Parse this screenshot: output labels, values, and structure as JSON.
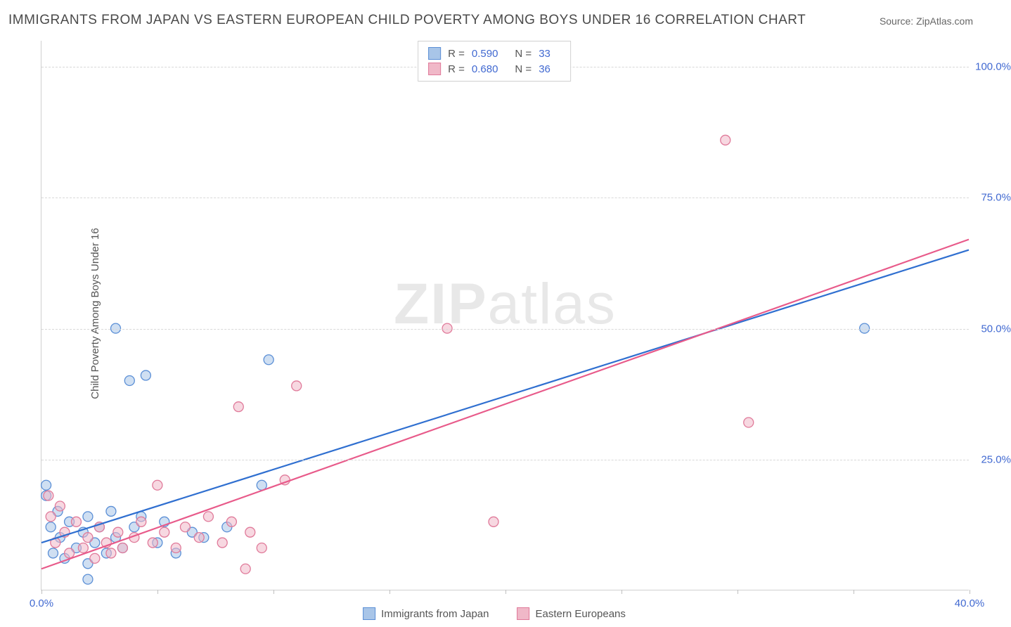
{
  "title": "IMMIGRANTS FROM JAPAN VS EASTERN EUROPEAN CHILD POVERTY AMONG BOYS UNDER 16 CORRELATION CHART",
  "source": "Source: ZipAtlas.com",
  "watermark_bold": "ZIP",
  "watermark_light": "atlas",
  "ylabel": "Child Poverty Among Boys Under 16",
  "chart": {
    "type": "scatter",
    "background_color": "#ffffff",
    "grid_color": "#d8d8d8",
    "axis_color": "#d0d0d0",
    "tick_color": "#4169d1",
    "tick_fontsize": 15,
    "ylabel_fontsize": 15,
    "xlim": [
      0,
      40
    ],
    "ylim": [
      0,
      105
    ],
    "xticks": [
      0,
      5,
      10,
      15,
      20,
      25,
      30,
      35,
      40
    ],
    "yticks": [
      25,
      50,
      75,
      100
    ],
    "xtick_labels": {
      "0": "0.0%",
      "40": "40.0%"
    },
    "ytick_labels": {
      "25": "25.0%",
      "50": "50.0%",
      "75": "75.0%",
      "100": "100.0%"
    },
    "series": [
      {
        "name": "Immigrants from Japan",
        "color_fill": "#a8c5e8",
        "color_stroke": "#5b8fd6",
        "fill_opacity": 0.55,
        "stroke_width": 1.3,
        "marker_radius": 7,
        "r_value": "0.590",
        "n_value": "33",
        "trend_line": {
          "x1": 0,
          "y1": 9,
          "x2": 40,
          "y2": 65,
          "color": "#2f6fd0",
          "width": 2.2
        },
        "points": [
          [
            0.2,
            20
          ],
          [
            0.2,
            18
          ],
          [
            0.4,
            12
          ],
          [
            0.5,
            7
          ],
          [
            0.7,
            15
          ],
          [
            0.8,
            10
          ],
          [
            1.0,
            6
          ],
          [
            1.2,
            13
          ],
          [
            1.5,
            8
          ],
          [
            1.8,
            11
          ],
          [
            2.0,
            5
          ],
          [
            2.0,
            14
          ],
          [
            2.3,
            9
          ],
          [
            2.5,
            12
          ],
          [
            2.8,
            7
          ],
          [
            3.0,
            15
          ],
          [
            3.2,
            10
          ],
          [
            3.5,
            8
          ],
          [
            3.8,
            40
          ],
          [
            4.0,
            12
          ],
          [
            4.3,
            14
          ],
          [
            4.5,
            41
          ],
          [
            5.0,
            9
          ],
          [
            5.3,
            13
          ],
          [
            5.8,
            7
          ],
          [
            6.5,
            11
          ],
          [
            7.0,
            10
          ],
          [
            8.0,
            12
          ],
          [
            9.5,
            20
          ],
          [
            9.8,
            44
          ],
          [
            3.2,
            50
          ],
          [
            35.5,
            50
          ],
          [
            2.0,
            2
          ]
        ]
      },
      {
        "name": "Eastern Europeans",
        "color_fill": "#f0b8c8",
        "color_stroke": "#e07a9a",
        "fill_opacity": 0.55,
        "stroke_width": 1.3,
        "marker_radius": 7,
        "r_value": "0.680",
        "n_value": "36",
        "trend_line": {
          "x1": 0,
          "y1": 4,
          "x2": 40,
          "y2": 67,
          "color": "#e85a8a",
          "width": 2.2
        },
        "points": [
          [
            0.3,
            18
          ],
          [
            0.4,
            14
          ],
          [
            0.6,
            9
          ],
          [
            0.8,
            16
          ],
          [
            1.0,
            11
          ],
          [
            1.2,
            7
          ],
          [
            1.5,
            13
          ],
          [
            1.8,
            8
          ],
          [
            2.0,
            10
          ],
          [
            2.3,
            6
          ],
          [
            2.5,
            12
          ],
          [
            2.8,
            9
          ],
          [
            3.0,
            7
          ],
          [
            3.3,
            11
          ],
          [
            3.5,
            8
          ],
          [
            4.0,
            10
          ],
          [
            4.3,
            13
          ],
          [
            4.8,
            9
          ],
          [
            5.0,
            20
          ],
          [
            5.3,
            11
          ],
          [
            5.8,
            8
          ],
          [
            6.2,
            12
          ],
          [
            6.8,
            10
          ],
          [
            7.2,
            14
          ],
          [
            7.8,
            9
          ],
          [
            8.2,
            13
          ],
          [
            8.5,
            35
          ],
          [
            9.0,
            11
          ],
          [
            9.5,
            8
          ],
          [
            10.5,
            21
          ],
          [
            11.0,
            39
          ],
          [
            17.5,
            50
          ],
          [
            19.5,
            13
          ],
          [
            29.5,
            86
          ],
          [
            30.5,
            32
          ],
          [
            8.8,
            4
          ]
        ]
      }
    ]
  },
  "legend_top_labels": {
    "r": "R =",
    "n": "N ="
  },
  "legend_bottom": [
    {
      "label": "Immigrants from Japan",
      "fill": "#a8c5e8",
      "stroke": "#5b8fd6"
    },
    {
      "label": "Eastern Europeans",
      "fill": "#f0b8c8",
      "stroke": "#e07a9a"
    }
  ]
}
